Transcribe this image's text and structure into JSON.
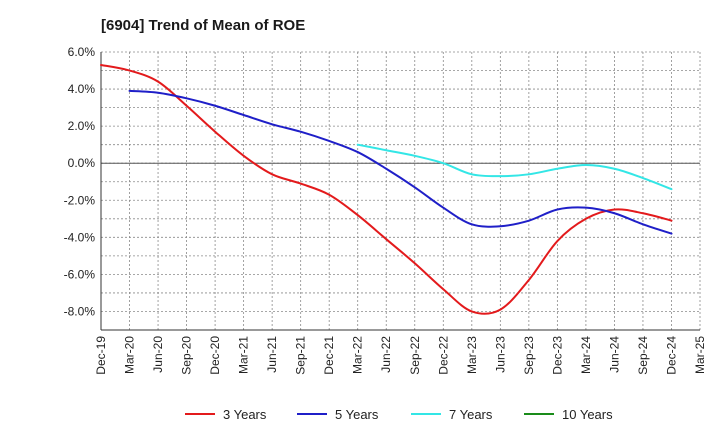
{
  "chart_data": {
    "type": "line",
    "title": "[6904]  Trend of Mean of ROE",
    "xlabel": "",
    "ylabel": "",
    "categories": [
      "Dec-19",
      "Mar-20",
      "Jun-20",
      "Sep-20",
      "Dec-20",
      "Mar-21",
      "Jun-21",
      "Sep-21",
      "Dec-21",
      "Mar-22",
      "Jun-22",
      "Sep-22",
      "Dec-22",
      "Mar-23",
      "Jun-23",
      "Sep-23",
      "Dec-23",
      "Mar-24",
      "Jun-24",
      "Sep-24",
      "Dec-24",
      "Mar-25"
    ],
    "ylim": [
      -9.0,
      6.0
    ],
    "yticks": [
      6.0,
      4.0,
      2.0,
      0.0,
      -2.0,
      -4.0,
      -6.0,
      -8.0
    ],
    "ytick_labels": [
      "6.0%",
      "4.0%",
      "2.0%",
      "0.0%",
      "-2.0%",
      "-4.0%",
      "-6.0%",
      "-8.0%"
    ],
    "grid": true,
    "legend_position": "bottom",
    "series": [
      {
        "name": "3 Years",
        "color": "#e31a1c",
        "values": [
          5.3,
          5.0,
          4.4,
          3.1,
          1.7,
          0.4,
          -0.6,
          -1.1,
          -1.7,
          -2.8,
          -4.1,
          -5.4,
          -6.8,
          -8.0,
          -7.9,
          -6.3,
          -4.2,
          -3.0,
          -2.5,
          -2.7,
          -3.1,
          null
        ]
      },
      {
        "name": "5 Years",
        "color": "#1f1fc8",
        "values": [
          null,
          3.9,
          3.8,
          3.5,
          3.1,
          2.6,
          2.1,
          1.7,
          1.2,
          0.6,
          -0.3,
          -1.3,
          -2.4,
          -3.3,
          -3.4,
          -3.1,
          -2.5,
          -2.4,
          -2.7,
          -3.3,
          -3.8,
          null
        ]
      },
      {
        "name": "7 Years",
        "color": "#33e6e6",
        "values": [
          null,
          null,
          null,
          null,
          null,
          null,
          null,
          null,
          null,
          1.0,
          0.7,
          0.4,
          0.0,
          -0.6,
          -0.7,
          -0.6,
          -0.3,
          -0.1,
          -0.3,
          -0.8,
          -1.4,
          null
        ]
      },
      {
        "name": "10 Years",
        "color": "#1a8c1a",
        "values": [
          null,
          null,
          null,
          null,
          null,
          null,
          null,
          null,
          null,
          null,
          null,
          null,
          null,
          null,
          null,
          null,
          null,
          null,
          null,
          null,
          null,
          null
        ]
      }
    ]
  }
}
